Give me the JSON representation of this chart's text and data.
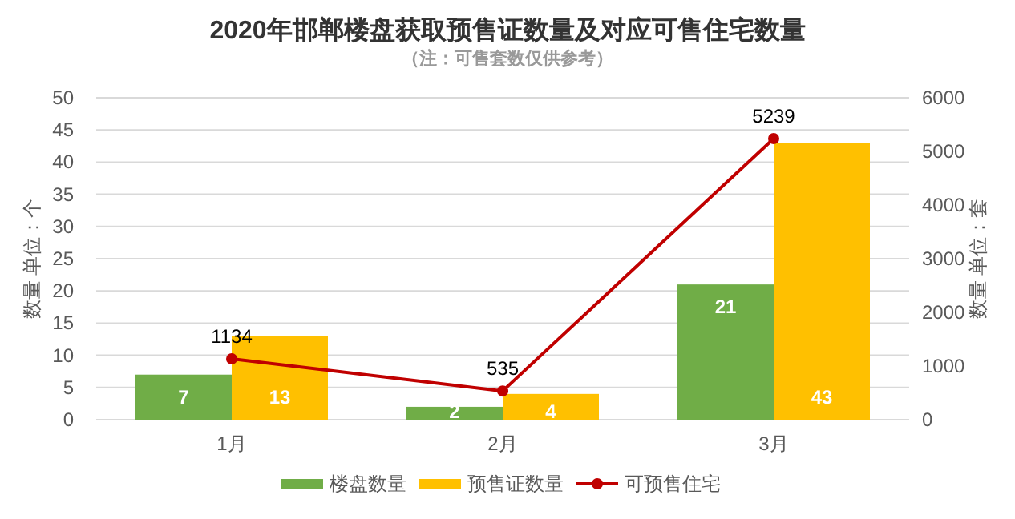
{
  "chart_data": {
    "type": "bar",
    "title": "2020年邯郸楼盘获取预售证数量及对应可售住宅数量",
    "subtitle": "（注：可售套数仅供参考）",
    "ylabel": "数量 单位：个",
    "y2label": "数量 单位：套",
    "categories": [
      "1月",
      "2月",
      "3月"
    ],
    "series": [
      {
        "name": "楼盘数量",
        "color": "#70ad47",
        "values": [
          7,
          2,
          21
        ]
      },
      {
        "name": "预售证数量",
        "color": "#ffc000",
        "values": [
          13,
          4,
          43
        ]
      },
      {
        "name": "可预售住宅",
        "type": "line",
        "axis": "y2",
        "color": "#c00000",
        "values": [
          1134,
          535,
          5239
        ]
      }
    ],
    "ylim": [
      0,
      50
    ],
    "yticks": [
      0,
      5,
      10,
      15,
      20,
      25,
      30,
      35,
      40,
      45,
      50
    ],
    "y2lim": [
      0,
      6000
    ],
    "y2ticks": [
      0,
      1000,
      2000,
      3000,
      4000,
      5000,
      6000
    ],
    "grid": "y",
    "legend": "bottom",
    "marker": "circle",
    "data_labels": true
  }
}
